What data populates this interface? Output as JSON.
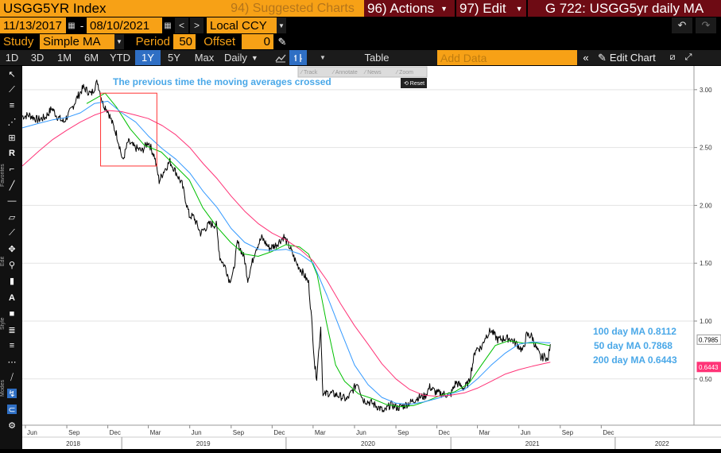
{
  "toolbar": {
    "security": "USGG5YR Index",
    "suggested": "94) Suggested Charts",
    "actions": "96) Actions",
    "edit": "97) Edit",
    "chart_title": "G 722: USGG5yr daily MA",
    "start_date": "11/13/2017",
    "dash": "-",
    "end_date": "08/10/2021",
    "currency": "Local CCY",
    "study_label": "Study",
    "study_value": "Simple MA",
    "period_label": "Period",
    "period_value": "50",
    "offset_label": "Offset",
    "offset_value": "0",
    "periods": [
      "1D",
      "3D",
      "1M",
      "6M",
      "YTD",
      "1Y",
      "5Y",
      "Max"
    ],
    "active_period": "1Y",
    "frequency": "Daily",
    "table": "Table",
    "add_data": "Add Data",
    "edit_chart": "Edit Chart"
  },
  "left_tools": {
    "favorites": "Favorites",
    "edit": "Edit",
    "style": "Style",
    "modes": "Modes"
  },
  "mini_toolbar": [
    "Track",
    "Annotate",
    "News",
    "Zoom",
    "Reset"
  ],
  "colors": {
    "price": "#000000",
    "ma50": "#00c000",
    "ma100": "#3399ff",
    "ma200": "#ff3377",
    "annotation_text": "#4aa8e8",
    "box": "#ff3333",
    "orange": "#f7a116",
    "maroon": "#6e0b14"
  },
  "chart_data": {
    "type": "line",
    "annotation": "The previous time the moving averages crossed",
    "y_ticks": [
      "0.50",
      "1.00",
      "1.50",
      "2.00",
      "2.50",
      "3.00"
    ],
    "ylim": [
      0.1,
      3.15
    ],
    "x_range": [
      "2018-05-25",
      "2022-06-25"
    ],
    "x_month_ticks": [
      {
        "label": "Jun",
        "date": "2018-06-01"
      },
      {
        "label": "Sep",
        "date": "2018-09-01"
      },
      {
        "label": "Dec",
        "date": "2018-12-01"
      },
      {
        "label": "Mar",
        "date": "2019-03-01"
      },
      {
        "label": "Jun",
        "date": "2019-06-01"
      },
      {
        "label": "Sep",
        "date": "2019-09-01"
      },
      {
        "label": "Dec",
        "date": "2019-12-01"
      },
      {
        "label": "Mar",
        "date": "2020-03-01"
      },
      {
        "label": "Jun",
        "date": "2020-06-01"
      },
      {
        "label": "Sep",
        "date": "2020-09-01"
      },
      {
        "label": "Dec",
        "date": "2020-12-01"
      },
      {
        "label": "Mar",
        "date": "2021-03-01"
      },
      {
        "label": "Jun",
        "date": "2021-06-01"
      },
      {
        "label": "Sep",
        "date": "2021-09-01"
      },
      {
        "label": "Dec",
        "date": "2021-12-01"
      }
    ],
    "x_year_labels": [
      {
        "label": "2018",
        "date": "2018-09-15"
      },
      {
        "label": "2019",
        "date": "2019-07-01"
      },
      {
        "label": "2020",
        "date": "2020-07-01"
      },
      {
        "label": "2021",
        "date": "2021-07-01"
      },
      {
        "label": "2022",
        "date": "2022-04-15"
      }
    ],
    "x_year_boundaries": [
      "2019-01-01",
      "2020-01-01",
      "2021-01-01",
      "2022-01-01"
    ],
    "highlight_box": {
      "x": [
        "2018-11-15",
        "2019-03-20"
      ],
      "y": [
        2.34,
        2.97
      ]
    },
    "legend": [
      {
        "text": "100 day MA 0.8112",
        "color": "#4aa8e8"
      },
      {
        "text": "50 day MA 0.7868",
        "color": "#4aa8e8"
      },
      {
        "text": "200 day MA 0.6443",
        "color": "#4aa8e8"
      }
    ],
    "last_values": [
      {
        "label": "0.7985",
        "value": 0.7985,
        "bg": "#ffffff",
        "fg": "#000000"
      },
      {
        "label": "0.6443",
        "value": 0.6443,
        "bg": "#ff3377",
        "fg": "#ffffff"
      }
    ],
    "series": [
      {
        "name": "USGG5YR Index",
        "color": "#000000",
        "width": 1,
        "points": [
          [
            "2018-05-25",
            2.77
          ],
          [
            "2018-06-10",
            2.78
          ],
          [
            "2018-06-28",
            2.74
          ],
          [
            "2018-07-15",
            2.76
          ],
          [
            "2018-07-30",
            2.84
          ],
          [
            "2018-08-10",
            2.77
          ],
          [
            "2018-08-25",
            2.72
          ],
          [
            "2018-09-10",
            2.82
          ],
          [
            "2018-09-25",
            2.94
          ],
          [
            "2018-10-08",
            3.02
          ],
          [
            "2018-10-25",
            2.96
          ],
          [
            "2018-11-08",
            3.07
          ],
          [
            "2018-11-20",
            2.88
          ],
          [
            "2018-12-01",
            2.82
          ],
          [
            "2018-12-10",
            2.72
          ],
          [
            "2018-12-20",
            2.62
          ],
          [
            "2018-12-28",
            2.5
          ],
          [
            "2019-01-03",
            2.38
          ],
          [
            "2019-01-15",
            2.55
          ],
          [
            "2019-01-30",
            2.5
          ],
          [
            "2019-02-15",
            2.47
          ],
          [
            "2019-03-01",
            2.55
          ],
          [
            "2019-03-15",
            2.42
          ],
          [
            "2019-03-25",
            2.21
          ],
          [
            "2019-04-05",
            2.3
          ],
          [
            "2019-04-18",
            2.38
          ],
          [
            "2019-05-01",
            2.29
          ],
          [
            "2019-05-15",
            2.18
          ],
          [
            "2019-05-31",
            1.91
          ],
          [
            "2019-06-10",
            1.9
          ],
          [
            "2019-06-25",
            1.76
          ],
          [
            "2019-07-15",
            1.84
          ],
          [
            "2019-07-30",
            1.83
          ],
          [
            "2019-08-07",
            1.55
          ],
          [
            "2019-08-20",
            1.46
          ],
          [
            "2019-08-28",
            1.35
          ],
          [
            "2019-09-05",
            1.4
          ],
          [
            "2019-09-15",
            1.68
          ],
          [
            "2019-09-30",
            1.55
          ],
          [
            "2019-10-08",
            1.36
          ],
          [
            "2019-10-25",
            1.62
          ],
          [
            "2019-11-08",
            1.72
          ],
          [
            "2019-11-25",
            1.63
          ],
          [
            "2019-12-10",
            1.66
          ],
          [
            "2019-12-27",
            1.73
          ],
          [
            "2020-01-10",
            1.63
          ],
          [
            "2020-01-24",
            1.5
          ],
          [
            "2020-02-07",
            1.42
          ],
          [
            "2020-02-20",
            1.33
          ],
          [
            "2020-02-28",
            0.95
          ],
          [
            "2020-03-05",
            0.6
          ],
          [
            "2020-03-09",
            0.52
          ],
          [
            "2020-03-18",
            0.95
          ],
          [
            "2020-03-23",
            0.35
          ],
          [
            "2020-04-01",
            0.38
          ],
          [
            "2020-04-15",
            0.37
          ],
          [
            "2020-05-01",
            0.35
          ],
          [
            "2020-05-15",
            0.32
          ],
          [
            "2020-06-08",
            0.47
          ],
          [
            "2020-06-20",
            0.32
          ],
          [
            "2020-07-10",
            0.29
          ],
          [
            "2020-07-30",
            0.24
          ],
          [
            "2020-08-05",
            0.21
          ],
          [
            "2020-08-20",
            0.28
          ],
          [
            "2020-09-05",
            0.25
          ],
          [
            "2020-09-20",
            0.27
          ],
          [
            "2020-10-05",
            0.3
          ],
          [
            "2020-10-20",
            0.34
          ],
          [
            "2020-11-05",
            0.35
          ],
          [
            "2020-11-15",
            0.43
          ],
          [
            "2020-11-30",
            0.38
          ],
          [
            "2020-12-15",
            0.37
          ],
          [
            "2020-12-31",
            0.36
          ],
          [
            "2021-01-12",
            0.47
          ],
          [
            "2021-01-30",
            0.42
          ],
          [
            "2021-02-10",
            0.47
          ],
          [
            "2021-02-25",
            0.76
          ],
          [
            "2021-03-10",
            0.77
          ],
          [
            "2021-03-18",
            0.86
          ],
          [
            "2021-03-31",
            0.92
          ],
          [
            "2021-04-15",
            0.84
          ],
          [
            "2021-04-30",
            0.85
          ],
          [
            "2021-05-12",
            0.85
          ],
          [
            "2021-05-28",
            0.8
          ],
          [
            "2021-06-10",
            0.74
          ],
          [
            "2021-06-18",
            0.88
          ],
          [
            "2021-06-30",
            0.87
          ],
          [
            "2021-07-08",
            0.78
          ],
          [
            "2021-07-20",
            0.68
          ],
          [
            "2021-07-30",
            0.7
          ],
          [
            "2021-08-04",
            0.65
          ],
          [
            "2021-08-10",
            0.8
          ]
        ]
      },
      {
        "name": "50 day MA",
        "color": "#00c000",
        "width": 1,
        "points": [
          [
            "2018-10-15",
            2.88
          ],
          [
            "2018-11-25",
            2.97
          ],
          [
            "2018-12-20",
            2.85
          ],
          [
            "2019-01-20",
            2.66
          ],
          [
            "2019-02-20",
            2.52
          ],
          [
            "2019-03-30",
            2.46
          ],
          [
            "2019-04-30",
            2.34
          ],
          [
            "2019-05-31",
            2.22
          ],
          [
            "2019-06-30",
            1.98
          ],
          [
            "2019-07-30",
            1.82
          ],
          [
            "2019-08-31",
            1.68
          ],
          [
            "2019-09-30",
            1.58
          ],
          [
            "2019-10-31",
            1.56
          ],
          [
            "2019-11-30",
            1.6
          ],
          [
            "2019-12-31",
            1.66
          ],
          [
            "2020-01-31",
            1.64
          ],
          [
            "2020-02-20",
            1.58
          ],
          [
            "2020-03-10",
            1.4
          ],
          [
            "2020-03-31",
            0.98
          ],
          [
            "2020-04-20",
            0.62
          ],
          [
            "2020-05-10",
            0.48
          ],
          [
            "2020-06-10",
            0.37
          ],
          [
            "2020-07-10",
            0.33
          ],
          [
            "2020-08-10",
            0.28
          ],
          [
            "2020-09-10",
            0.26
          ],
          [
            "2020-10-10",
            0.27
          ],
          [
            "2020-11-10",
            0.31
          ],
          [
            "2020-12-10",
            0.36
          ],
          [
            "2021-01-10",
            0.39
          ],
          [
            "2021-02-10",
            0.46
          ],
          [
            "2021-03-10",
            0.62
          ],
          [
            "2021-04-10",
            0.79
          ],
          [
            "2021-05-10",
            0.83
          ],
          [
            "2021-06-10",
            0.81
          ],
          [
            "2021-07-10",
            0.81
          ],
          [
            "2021-08-10",
            0.787
          ]
        ]
      },
      {
        "name": "100 day MA",
        "color": "#3399ff",
        "width": 1,
        "points": [
          [
            "2018-05-25",
            2.67
          ],
          [
            "2018-07-01",
            2.71
          ],
          [
            "2018-08-01",
            2.74
          ],
          [
            "2018-09-01",
            2.76
          ],
          [
            "2018-10-01",
            2.8
          ],
          [
            "2018-11-01",
            2.88
          ],
          [
            "2018-12-01",
            2.9
          ],
          [
            "2019-01-01",
            2.8
          ],
          [
            "2019-02-01",
            2.72
          ],
          [
            "2019-03-01",
            2.6
          ],
          [
            "2019-04-01",
            2.49
          ],
          [
            "2019-05-01",
            2.4
          ],
          [
            "2019-06-01",
            2.28
          ],
          [
            "2019-07-01",
            2.12
          ],
          [
            "2019-08-01",
            1.98
          ],
          [
            "2019-09-01",
            1.8
          ],
          [
            "2019-10-01",
            1.68
          ],
          [
            "2019-11-01",
            1.62
          ],
          [
            "2019-12-01",
            1.61
          ],
          [
            "2020-01-01",
            1.62
          ],
          [
            "2020-02-01",
            1.58
          ],
          [
            "2020-03-01",
            1.5
          ],
          [
            "2020-04-01",
            1.22
          ],
          [
            "2020-05-01",
            0.92
          ],
          [
            "2020-06-01",
            0.62
          ],
          [
            "2020-07-01",
            0.45
          ],
          [
            "2020-08-01",
            0.34
          ],
          [
            "2020-09-01",
            0.29
          ],
          [
            "2020-10-01",
            0.28
          ],
          [
            "2020-11-01",
            0.3
          ],
          [
            "2020-12-01",
            0.33
          ],
          [
            "2021-01-01",
            0.37
          ],
          [
            "2021-02-01",
            0.41
          ],
          [
            "2021-03-01",
            0.5
          ],
          [
            "2021-04-01",
            0.62
          ],
          [
            "2021-05-01",
            0.72
          ],
          [
            "2021-06-01",
            0.8
          ],
          [
            "2021-07-01",
            0.82
          ],
          [
            "2021-08-10",
            0.811
          ]
        ]
      },
      {
        "name": "200 day MA",
        "color": "#ff3377",
        "width": 1,
        "points": [
          [
            "2018-05-25",
            2.34
          ],
          [
            "2018-07-01",
            2.47
          ],
          [
            "2018-08-01",
            2.57
          ],
          [
            "2018-09-01",
            2.65
          ],
          [
            "2018-10-01",
            2.72
          ],
          [
            "2018-11-01",
            2.78
          ],
          [
            "2018-12-01",
            2.82
          ],
          [
            "2019-01-01",
            2.81
          ],
          [
            "2019-02-01",
            2.78
          ],
          [
            "2019-03-01",
            2.75
          ],
          [
            "2019-04-01",
            2.69
          ],
          [
            "2019-05-01",
            2.61
          ],
          [
            "2019-06-01",
            2.5
          ],
          [
            "2019-07-01",
            2.36
          ],
          [
            "2019-08-01",
            2.23
          ],
          [
            "2019-09-01",
            2.08
          ],
          [
            "2019-10-01",
            1.95
          ],
          [
            "2019-11-01",
            1.84
          ],
          [
            "2019-12-01",
            1.76
          ],
          [
            "2020-01-01",
            1.7
          ],
          [
            "2020-02-01",
            1.62
          ],
          [
            "2020-03-01",
            1.52
          ],
          [
            "2020-04-01",
            1.35
          ],
          [
            "2020-05-01",
            1.15
          ],
          [
            "2020-06-01",
            0.96
          ],
          [
            "2020-07-01",
            0.8
          ],
          [
            "2020-08-01",
            0.63
          ],
          [
            "2020-09-01",
            0.5
          ],
          [
            "2020-10-01",
            0.41
          ],
          [
            "2020-11-01",
            0.36
          ],
          [
            "2020-12-01",
            0.35
          ],
          [
            "2021-01-01",
            0.36
          ],
          [
            "2021-02-01",
            0.38
          ],
          [
            "2021-03-01",
            0.42
          ],
          [
            "2021-04-01",
            0.48
          ],
          [
            "2021-05-01",
            0.54
          ],
          [
            "2021-06-01",
            0.58
          ],
          [
            "2021-07-01",
            0.61
          ],
          [
            "2021-08-10",
            0.644
          ]
        ]
      }
    ]
  }
}
